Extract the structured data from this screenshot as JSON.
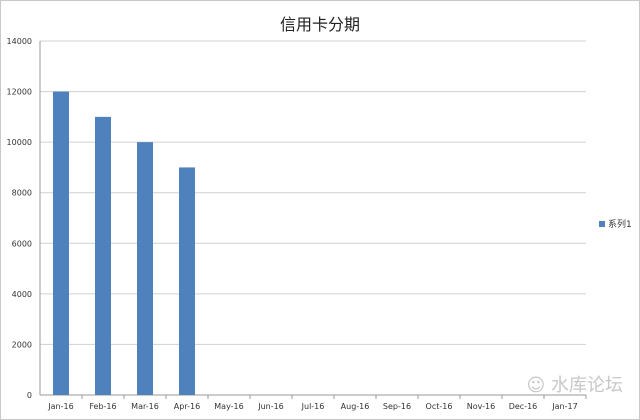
{
  "chart_data": {
    "type": "bar",
    "title": "信用卡分期",
    "categories": [
      "Jan-16",
      "Feb-16",
      "Mar-16",
      "Apr-16",
      "May-16",
      "Jun-16",
      "Jul-16",
      "Aug-16",
      "Sep-16",
      "Oct-16",
      "Nov-16",
      "Dec-16",
      "Jan-17"
    ],
    "series": [
      {
        "name": "系列1",
        "values": [
          12000,
          11000,
          10000,
          9000,
          null,
          null,
          null,
          null,
          null,
          null,
          null,
          null,
          null
        ],
        "color": "#4f81bd"
      }
    ],
    "yticks": [
      0,
      2000,
      4000,
      6000,
      8000,
      10000,
      12000,
      14000
    ],
    "ylim": [
      0,
      14000
    ],
    "grid": true,
    "legend": "right"
  },
  "watermark": "水库论坛"
}
